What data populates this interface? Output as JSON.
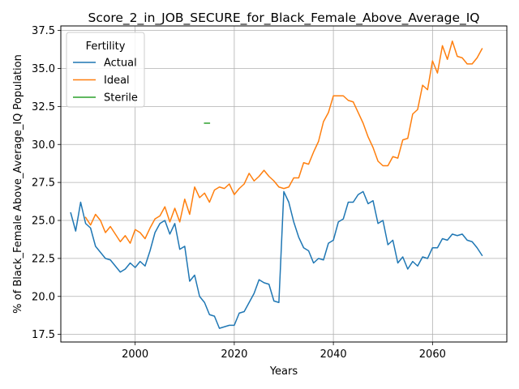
{
  "chart_data": {
    "type": "line",
    "title": "Score_2_in_JOB_SECURE_for_Black_Female_Above_Average_IQ",
    "xlabel": "Years",
    "ylabel": "% of Black_Female Above_Average_IQ Population",
    "xlim": [
      1985,
      2075
    ],
    "ylim": [
      17.0,
      37.8
    ],
    "xticks": [
      2000,
      2020,
      2040,
      2060
    ],
    "xtick_labels": [
      "2000",
      "2020",
      "2040",
      "2060"
    ],
    "yticks": [
      17.5,
      20.0,
      22.5,
      25.0,
      27.5,
      30.0,
      32.5,
      35.0,
      37.5
    ],
    "ytick_labels": [
      "17.5",
      "20.0",
      "22.5",
      "25.0",
      "27.5",
      "30.0",
      "32.5",
      "35.0",
      "37.5"
    ],
    "grid": true,
    "legend": {
      "title": "Fertility",
      "position": "top-left"
    },
    "series": [
      {
        "name": "Actual",
        "color": "#1f77b4",
        "x": [
          1987,
          1988,
          1989,
          1990,
          1991,
          1992,
          1993,
          1994,
          1995,
          1996,
          1997,
          1998,
          1999,
          2000,
          2001,
          2002,
          2003,
          2004,
          2005,
          2006,
          2007,
          2008,
          2009,
          2010,
          2011,
          2012,
          2013,
          2014,
          2015,
          2016,
          2017,
          2018,
          2019,
          2020,
          2021,
          2022,
          2023,
          2024,
          2025,
          2026,
          2027,
          2028,
          2029,
          2030,
          2031,
          2032,
          2033,
          2034,
          2035,
          2036,
          2037,
          2038,
          2039,
          2040,
          2041,
          2042,
          2043,
          2044,
          2045,
          2046,
          2047,
          2048,
          2049,
          2050,
          2051,
          2052,
          2053,
          2054,
          2055,
          2056,
          2057,
          2058,
          2059,
          2060,
          2061,
          2062,
          2063,
          2064,
          2065,
          2066,
          2067,
          2068,
          2069,
          2070
        ],
        "values": [
          25.5,
          24.3,
          26.2,
          24.8,
          24.5,
          23.3,
          22.9,
          22.5,
          22.4,
          22.0,
          21.6,
          21.8,
          22.2,
          21.9,
          22.3,
          22.0,
          23.0,
          24.2,
          24.8,
          25.0,
          24.1,
          24.8,
          23.1,
          23.3,
          21.0,
          21.4,
          20.0,
          19.6,
          18.8,
          18.7,
          17.9,
          18.0,
          18.1,
          18.1,
          18.9,
          19.0,
          19.6,
          20.2,
          21.1,
          20.9,
          20.8,
          19.7,
          19.6,
          26.9,
          26.2,
          24.9,
          23.9,
          23.2,
          23.0,
          22.2,
          22.5,
          22.4,
          23.5,
          23.7,
          24.9,
          25.1,
          26.2,
          26.2,
          26.7,
          26.9,
          26.1,
          26.3,
          24.8,
          25.0,
          23.4,
          23.7,
          22.2,
          22.6,
          21.8,
          22.3,
          22.0,
          22.6,
          22.5,
          23.2,
          23.2,
          23.8,
          23.7,
          24.1,
          24.0,
          24.1,
          23.7,
          23.6,
          23.2,
          22.7
        ]
      },
      {
        "name": "Ideal",
        "color": "#ff7f0e",
        "x": [
          1990,
          1991,
          1992,
          1993,
          1994,
          1995,
          1996,
          1997,
          1998,
          1999,
          2000,
          2001,
          2002,
          2003,
          2004,
          2005,
          2006,
          2007,
          2008,
          2009,
          2010,
          2011,
          2012,
          2013,
          2014,
          2015,
          2016,
          2017,
          2018,
          2019,
          2020,
          2021,
          2022,
          2023,
          2024,
          2025,
          2026,
          2027,
          2028,
          2029,
          2030,
          2031,
          2032,
          2033,
          2034,
          2035,
          2036,
          2037,
          2038,
          2039,
          2040,
          2041,
          2042,
          2043,
          2044,
          2045,
          2046,
          2047,
          2048,
          2049,
          2050,
          2051,
          2052,
          2053,
          2054,
          2055,
          2056,
          2057,
          2058,
          2059,
          2060,
          2061,
          2062,
          2063,
          2064,
          2065,
          2066,
          2067,
          2068,
          2069,
          2070
        ],
        "values": [
          25.2,
          24.7,
          25.4,
          25.0,
          24.2,
          24.6,
          24.1,
          23.6,
          24.0,
          23.5,
          24.4,
          24.2,
          23.8,
          24.5,
          25.1,
          25.3,
          25.9,
          24.9,
          25.8,
          24.9,
          26.4,
          25.4,
          27.2,
          26.5,
          26.8,
          26.2,
          27.0,
          27.2,
          27.1,
          27.4,
          26.7,
          27.1,
          27.4,
          28.1,
          27.6,
          27.9,
          28.3,
          27.9,
          27.6,
          27.2,
          27.1,
          27.2,
          27.8,
          27.8,
          28.8,
          28.7,
          29.5,
          30.2,
          31.5,
          32.1,
          33.2,
          33.2,
          33.2,
          32.9,
          32.8,
          32.1,
          31.4,
          30.5,
          29.8,
          28.9,
          28.6,
          28.6,
          29.2,
          29.1,
          30.3,
          30.4,
          32.0,
          32.3,
          33.9,
          33.6,
          35.5,
          34.7,
          36.5,
          35.6,
          36.8,
          35.8,
          35.7,
          35.3,
          35.3,
          35.7,
          36.3
        ]
      },
      {
        "name": "Sterile",
        "color": "#2ca02c",
        "x": [
          2014,
          2015
        ],
        "values": [
          31.4,
          31.4
        ]
      }
    ]
  }
}
